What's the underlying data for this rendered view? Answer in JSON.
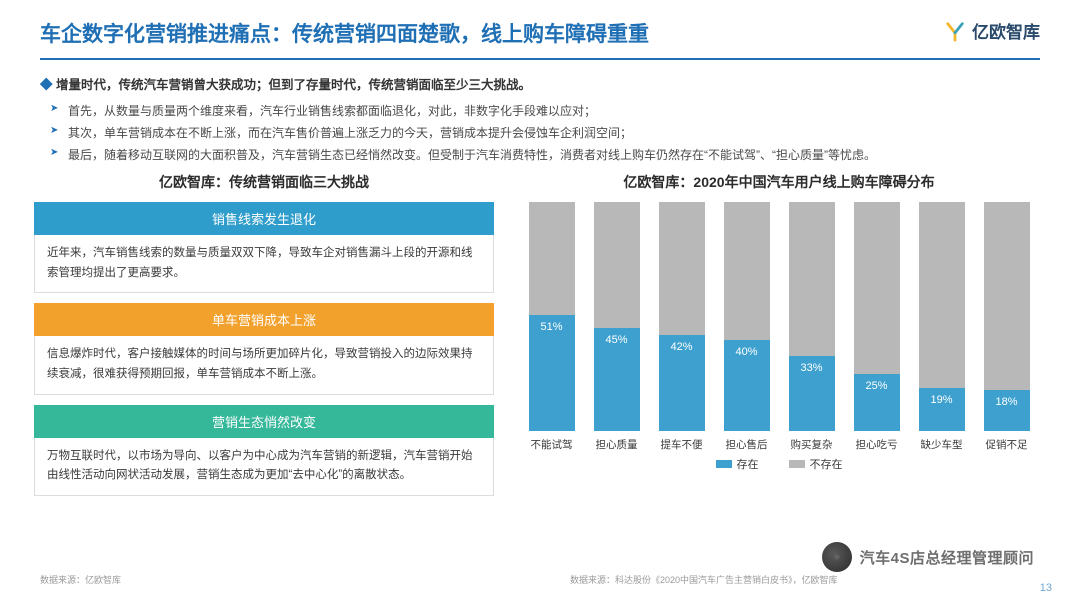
{
  "header": {
    "title": "车企数字化营销推进痛点：传统营销四面楚歌，线上购车障碍重重",
    "logo_text": "亿欧智库",
    "logo_colors": {
      "stroke1": "#f4b72a",
      "stroke2": "#3aa1b8"
    }
  },
  "intro": {
    "lead": "增量时代，传统汽车营销曾大获成功；但到了存量时代，传统营销面临至少三大挑战。",
    "bullets": [
      "首先，从数量与质量两个维度来看，汽车行业销售线索都面临退化，对此，非数字化手段难以应对；",
      "其次，单车营销成本在不断上涨，而在汽车售价普遍上涨乏力的今天，营销成本提升会侵蚀车企利润空间；",
      "最后，随着移动互联网的大面积普及，汽车营销生态已经悄然改变。但受制于汽车消费特性，消费者对线上购车仍然存在“不能试驾”、“担心质量”等忧虑。"
    ]
  },
  "left_panel": {
    "title": "亿欧智库：传统营销面临三大挑战",
    "boxes": [
      {
        "head": "销售线索发生退化",
        "head_bg": "#2f9dcb",
        "body": "近年来，汽车销售线索的数量与质量双双下降，导致车企对销售漏斗上段的开源和线索管理均提出了更高要求。"
      },
      {
        "head": "单车营销成本上涨",
        "head_bg": "#f2a12d",
        "body": "信息爆炸时代，客户接触媒体的时间与场所更加碎片化，导致营销投入的边际效果持续衰减，很难获得预期回报，单车营销成本不断上涨。"
      },
      {
        "head": "营销生态悄然改变",
        "head_bg": "#35b79a",
        "body": "万物互联时代，以市场为导向、以客户为中心成为汽车营销的新逻辑，汽车营销开始由线性活动向网状活动发展，营销生态成为更加“去中心化”的离散状态。"
      }
    ]
  },
  "chart": {
    "title": "亿欧智库：2020年中国汽车用户线上购车障碍分布",
    "type": "stacked-bar-100",
    "categories": [
      "不能试驾",
      "担心质量",
      "提车不便",
      "担心售后",
      "购买复杂",
      "担心吃亏",
      "缺少车型",
      "促销不足"
    ],
    "values_exist_pct": [
      51,
      45,
      42,
      40,
      33,
      25,
      19,
      18
    ],
    "colors": {
      "exist": "#3da0cf",
      "not_exist": "#b8b8b8"
    },
    "legend": [
      {
        "label": "存在",
        "color": "#3da0cf"
      },
      {
        "label": "不存在",
        "color": "#b8b8b8"
      }
    ],
    "value_label_color": "#ffffff",
    "category_fontsize": 10.5
  },
  "footer": {
    "left": "数据来源：亿欧智库",
    "right": "数据来源：科达股份《2020中国汽车广告主营销白皮书》，亿欧智库"
  },
  "page_number": "13",
  "watermark": "汽车4S店总经理管理顾问"
}
